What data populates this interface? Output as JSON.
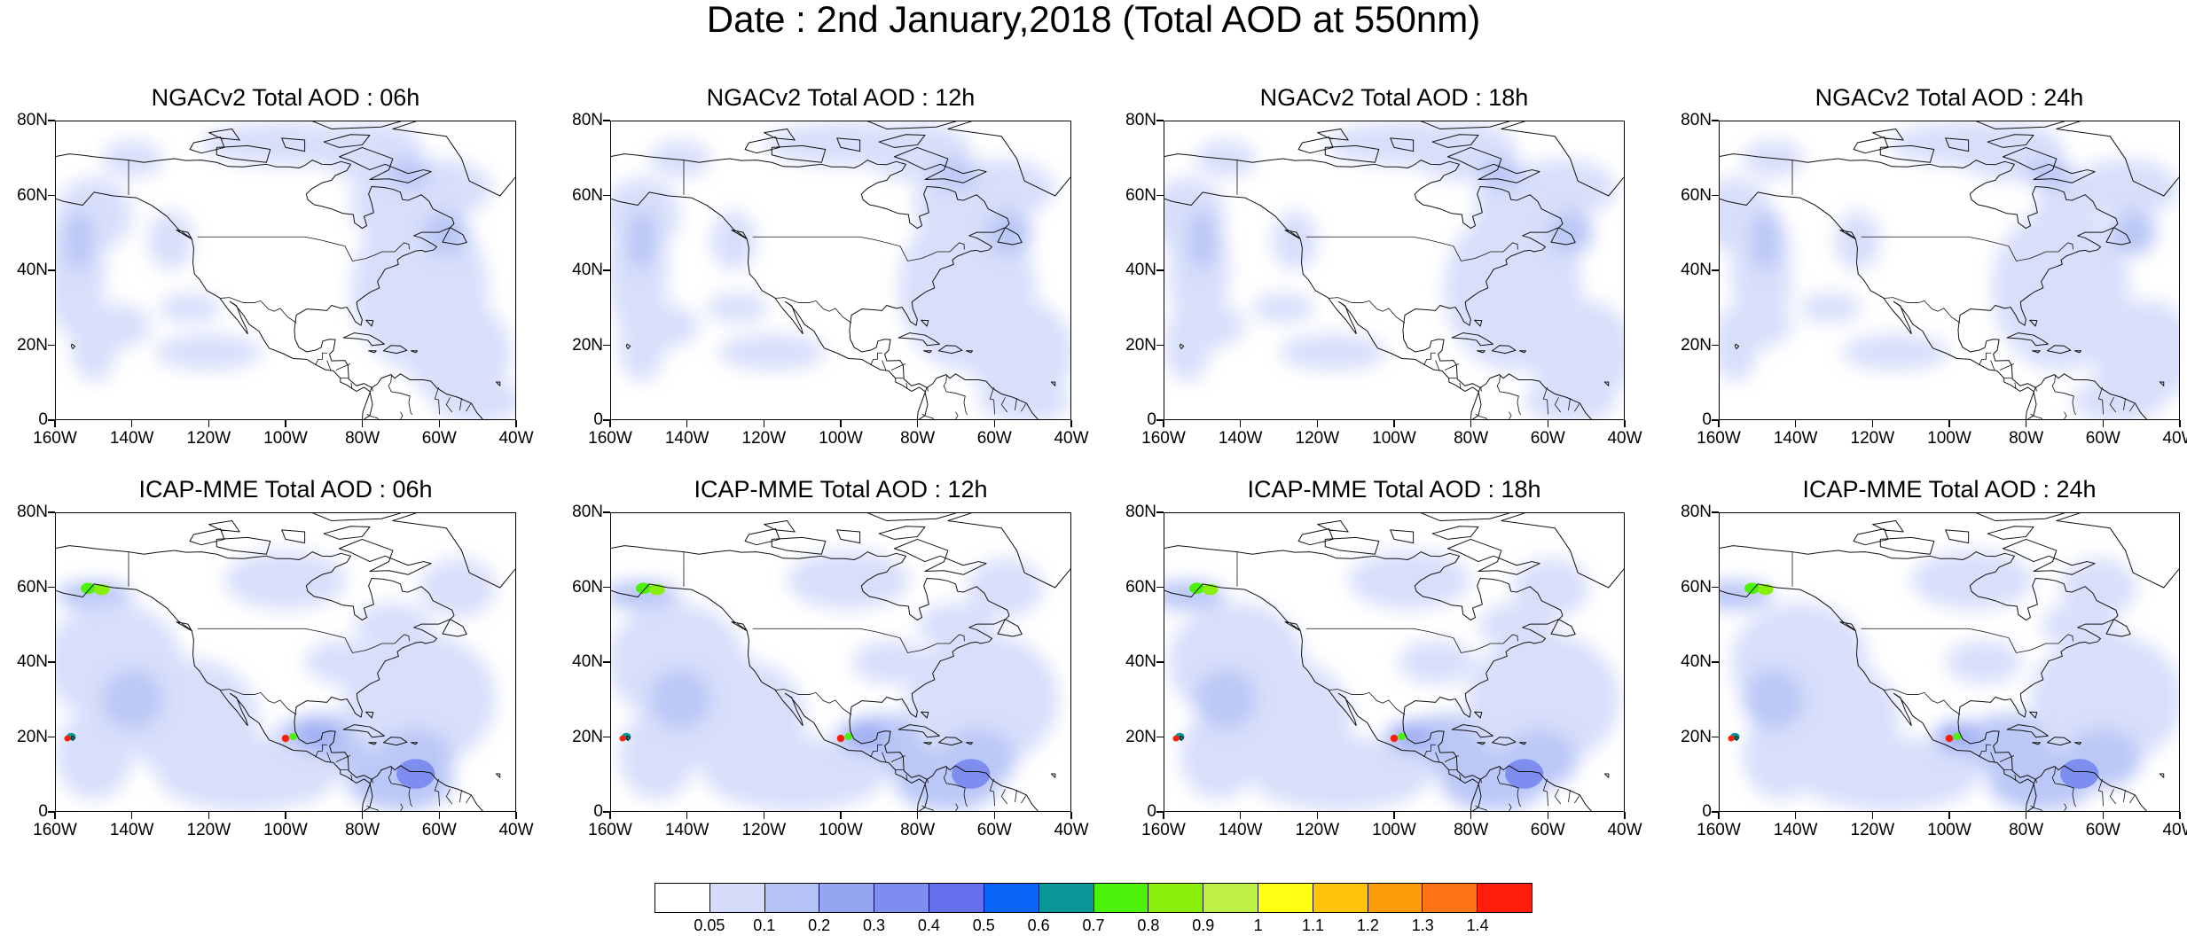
{
  "title": "Date : 2nd January,2018 (Total AOD at 550nm)",
  "panels": [
    {
      "title": "NGACv2 Total AOD : 06h",
      "model": "NGACv2",
      "hour": "06h"
    },
    {
      "title": "NGACv2 Total AOD : 12h",
      "model": "NGACv2",
      "hour": "12h"
    },
    {
      "title": "NGACv2 Total AOD : 18h",
      "model": "NGACv2",
      "hour": "18h"
    },
    {
      "title": "NGACv2 Total AOD : 24h",
      "model": "NGACv2",
      "hour": "24h"
    },
    {
      "title": "ICAP-MME Total AOD : 06h",
      "model": "ICAP-MME",
      "hour": "06h"
    },
    {
      "title": "ICAP-MME Total AOD : 12h",
      "model": "ICAP-MME",
      "hour": "12h"
    },
    {
      "title": "ICAP-MME Total AOD : 18h",
      "model": "ICAP-MME",
      "hour": "18h"
    },
    {
      "title": "ICAP-MME Total AOD : 24h",
      "model": "ICAP-MME",
      "hour": "24h"
    }
  ],
  "lat_ticks": [
    "80N",
    "60N",
    "40N",
    "20N",
    "0"
  ],
  "lon_ticks": [
    "160W",
    "140W",
    "120W",
    "100W",
    "80W",
    "60W",
    "40W"
  ],
  "colorbar": {
    "labels": [
      "0.05",
      "0.1",
      "0.2",
      "0.3",
      "0.4",
      "0.5",
      "0.6",
      "0.7",
      "0.8",
      "0.9",
      "1",
      "1.1",
      "1.2",
      "1.3",
      "1.4"
    ],
    "colors": [
      "#ffffff",
      "#d4dcfa",
      "#b4c2f6",
      "#94a6f2",
      "#7e8ef0",
      "#6470ec",
      "#0a64f5",
      "#0a9698",
      "#4cf20a",
      "#88f00a",
      "#bef046",
      "#ffff14",
      "#ffc40a",
      "#ff9c0a",
      "#ff7414",
      "#ff1e0a"
    ]
  }
}
